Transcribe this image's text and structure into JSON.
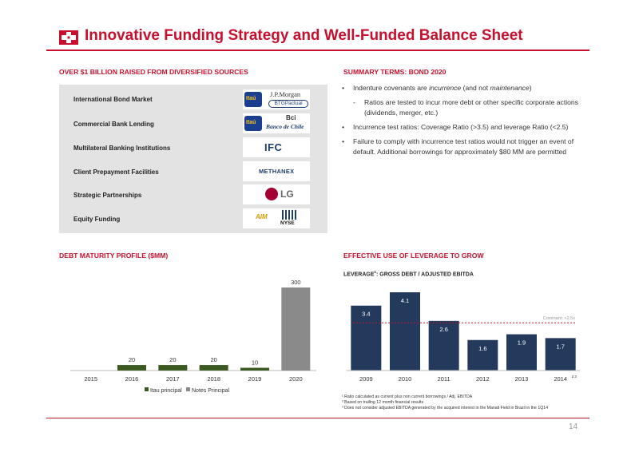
{
  "title": "Innovative Funding Strategy and Well-Funded Balance Sheet",
  "sections": {
    "sources": "OVER $1 BILLION RAISED FROM DIVERSIFIED SOURCES",
    "summary": "SUMMARY TERMS: BOND 2020",
    "debt": "DEBT MATURITY PROFILE ($MM)",
    "leverage": "EFFECTIVE USE OF LEVERAGE TO GROW"
  },
  "funding_sources": [
    {
      "label": "International Bond Market",
      "logos": [
        "Itaú",
        "J.P.Morgan",
        "BTGPactual"
      ]
    },
    {
      "label": "Commercial Bank Lending",
      "logos": [
        "Itaú",
        "Bci",
        "Banco de Chile"
      ]
    },
    {
      "label": "Multilateral Banking Institutions",
      "logos": [
        "IFC"
      ]
    },
    {
      "label": "Client Prepayment Facilities",
      "logos": [
        "METHANEX"
      ]
    },
    {
      "label": "Strategic Partnerships",
      "logos": [
        "LG"
      ]
    },
    {
      "label": "Equity Funding",
      "logos": [
        "AIM",
        "NYSE"
      ]
    }
  ],
  "bullets": {
    "b1_a": "Indenture covenants are ",
    "b1_b": "incurrence",
    "b1_c": " (and not ",
    "b1_d": "maintenance",
    "b1_e": ")",
    "sub1": "Ratios are tested to incur more debt or other specific corporate actions (dividends, merger, etc.)",
    "b2": "Incurrence test ratios: Coverage Ratio (>3.5) and leverage Ratio (<2.5)",
    "b3": "Failure to comply with incurrence test ratios would not trigger an event of default. Additional borrowings for approximately $80 MM are permitted"
  },
  "chart_data": [
    {
      "type": "bar",
      "title": "DEBT MATURITY PROFILE ($MM)",
      "categories": [
        "2015",
        "2016",
        "2017",
        "2018",
        "2019",
        "2020"
      ],
      "series": [
        {
          "name": "Itau principal",
          "values": [
            0,
            20,
            20,
            20,
            10,
            0
          ],
          "color": "#3a5a1f"
        },
        {
          "name": "Notes Principal",
          "values": [
            0,
            0,
            0,
            0,
            0,
            300
          ],
          "color": "#8a8a8a"
        }
      ],
      "data_labels": [
        "",
        "20",
        "20",
        "20",
        "10",
        "300"
      ],
      "ylim": [
        0,
        300
      ],
      "legend": "bottom"
    },
    {
      "type": "bar",
      "title": "LEVERAGE",
      "title_sup": "1",
      "subtitle": ": GROSS DEBT / ADJUSTED EBITDA",
      "categories": [
        "2009",
        "2010",
        "2011",
        "2012",
        "2013",
        "2014"
      ],
      "last_category_sup": "2,3",
      "values": [
        3.4,
        4.1,
        2.6,
        1.6,
        1.9,
        1.7
      ],
      "data_labels": [
        "3.4",
        "4.1",
        "2.6",
        "1.6",
        "1.9",
        "1.7"
      ],
      "color": "#233a5c",
      "ylim": [
        0,
        4.1
      ],
      "covenant": {
        "value": 2.5,
        "label": "Covenant: <2.5x",
        "color": "#c8102e"
      }
    }
  ],
  "footnotes": [
    "¹ Ratio calculated as current plus non current borrowings / Adj. EBITDA",
    "² Based on trailing 12 month financial results",
    "³ Does not  consider  adjusted EBITDA generated by the acquired interest in the Manati Field in Brazil in the 1Q14"
  ],
  "page_number": "14",
  "colors": {
    "accent": "#c8102e",
    "panel": "#e3e3e3",
    "navy": "#233a5c",
    "green": "#3a5a1f",
    "gray": "#8a8a8a"
  }
}
